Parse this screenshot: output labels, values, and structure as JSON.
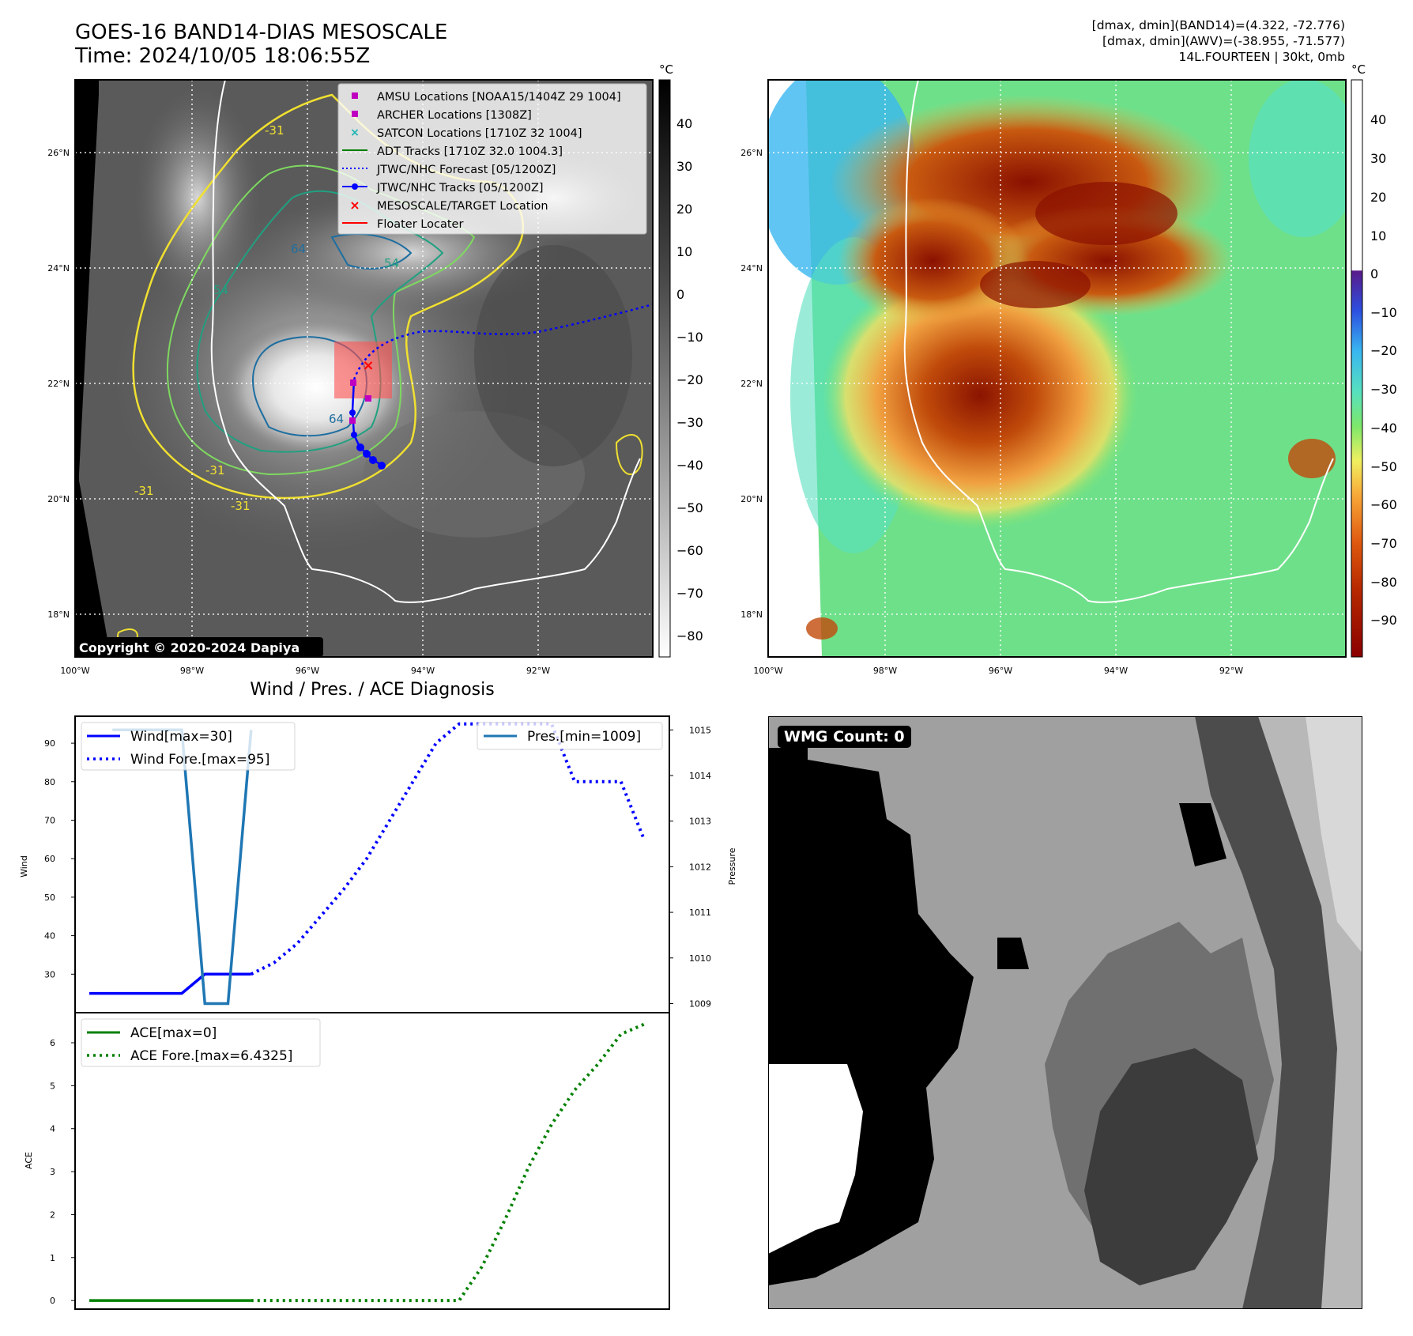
{
  "header": {
    "title_line1": "GOES-16 BAND14-DIAS MESOSCALE",
    "title_line2": "Time: 2024/10/05 18:06:55Z",
    "info_line1": "[dmax, dmin](BAND14)=(4.322, -72.776)",
    "info_line2": "[dmax, dmin](AWV)=(-38.955, -71.577)",
    "info_line3": "14L.FOURTEEN | 30kt, 0mb"
  },
  "map_axes": {
    "lon_labels": [
      "100°W",
      "98°W",
      "96°W",
      "94°W",
      "92°W"
    ],
    "lat_labels": [
      "26°N",
      "24°N",
      "22°N",
      "20°N",
      "18°N"
    ],
    "contour_labels": [
      "-31",
      "-31",
      "-31",
      "-31",
      "54",
      "54",
      "64",
      "64"
    ]
  },
  "legend": {
    "items": [
      {
        "label": "AMSU Locations [NOAA15/1404Z 29 1004]",
        "color": "#c000c0",
        "marker": "square"
      },
      {
        "label": "ARCHER Locations [1308Z]",
        "color": "#c000c0",
        "marker": "square"
      },
      {
        "label": "SATCON Locations [1710Z 32 1004]",
        "color": "#1ab5b5",
        "marker": "x"
      },
      {
        "label": "ADT Tracks [1710Z 32.0 1004.3]",
        "color": "#008000",
        "marker": "line"
      },
      {
        "label": "JTWC/NHC Forecast [05/1200Z]",
        "color": "#0000ff",
        "marker": "dotted"
      },
      {
        "label": "JTWC/NHC Tracks [05/1200Z]",
        "color": "#0000ff",
        "marker": "line-dot"
      },
      {
        "label": "MESOSCALE/TARGET Location",
        "color": "#ff0000",
        "marker": "x"
      },
      {
        "label": "Floater Locater",
        "color": "#ff0000",
        "marker": "line"
      }
    ]
  },
  "copyright": "Copyright © 2020-2024 Dapiya",
  "colorbar_gray": {
    "unit": "°C",
    "ticks": [
      "40",
      "30",
      "20",
      "10",
      "0",
      "−10",
      "−20",
      "−30",
      "−40",
      "−50",
      "−60",
      "−70",
      "−80"
    ]
  },
  "colorbar_color": {
    "unit": "°C",
    "ticks": [
      "40",
      "30",
      "20",
      "10",
      "0",
      "−10",
      "−20",
      "−30",
      "−40",
      "−50",
      "−60",
      "−70",
      "−80",
      "−90"
    ]
  },
  "diagnosis": {
    "title": "Wind / Pres. / ACE Diagnosis",
    "wmg_label": "WMG Count: 0"
  },
  "chart_data": [
    {
      "type": "line",
      "title": "Wind / Pres. / ACE Diagnosis",
      "ylabel": "Wind",
      "y2label": "Pressure",
      "ylim": [
        20,
        97
      ],
      "y2lim": [
        1008.8,
        1015.3
      ],
      "yticks": [
        "30",
        "40",
        "50",
        "60",
        "70",
        "80",
        "90"
      ],
      "y2ticks": [
        "1009",
        "1010",
        "1011",
        "1012",
        "1013",
        "1014",
        "1015"
      ],
      "series": [
        {
          "name": "Wind[max=30]",
          "color": "#0000ff",
          "style": "solid",
          "x": [
            0,
            1,
            2,
            3,
            4,
            5,
            6,
            7
          ],
          "values": [
            25,
            25,
            25,
            25,
            25,
            30,
            30,
            30
          ]
        },
        {
          "name": "Wind Fore.[max=95]",
          "color": "#0000ff",
          "style": "dotted",
          "x": [
            7,
            8,
            9,
            10,
            11,
            12,
            13,
            14,
            15,
            16,
            17,
            18,
            19,
            20,
            21,
            22,
            23,
            24
          ],
          "values": [
            30,
            33,
            38,
            45,
            52,
            60,
            70,
            80,
            90,
            95,
            95,
            95,
            95,
            95,
            80,
            80,
            80,
            65
          ]
        },
        {
          "name": "Pres.[min=1009]",
          "color": "#1f77b4",
          "style": "solid",
          "axis": "right",
          "x": [
            1,
            4,
            5,
            6,
            7
          ],
          "values": [
            1015,
            1015,
            1009,
            1009,
            1015
          ]
        }
      ]
    },
    {
      "type": "line",
      "ylabel": "ACE",
      "ylim": [
        -0.2,
        6.7
      ],
      "yticks": [
        "0",
        "1",
        "2",
        "3",
        "4",
        "5",
        "6"
      ],
      "series": [
        {
          "name": "ACE[max=0]",
          "color": "#008000",
          "style": "solid",
          "x": [
            0,
            7
          ],
          "values": [
            0,
            0
          ]
        },
        {
          "name": "ACE Fore.[max=6.4325]",
          "color": "#008000",
          "style": "dotted",
          "x": [
            7,
            8,
            9,
            10,
            11,
            12,
            13,
            14,
            15,
            16,
            17,
            18,
            19,
            20,
            21,
            22,
            23,
            24
          ],
          "values": [
            0,
            0,
            0,
            0,
            0,
            0,
            0,
            0,
            0,
            0,
            0.8,
            1.9,
            3.1,
            4.1,
            4.9,
            5.5,
            6.2,
            6.43
          ]
        }
      ]
    }
  ]
}
